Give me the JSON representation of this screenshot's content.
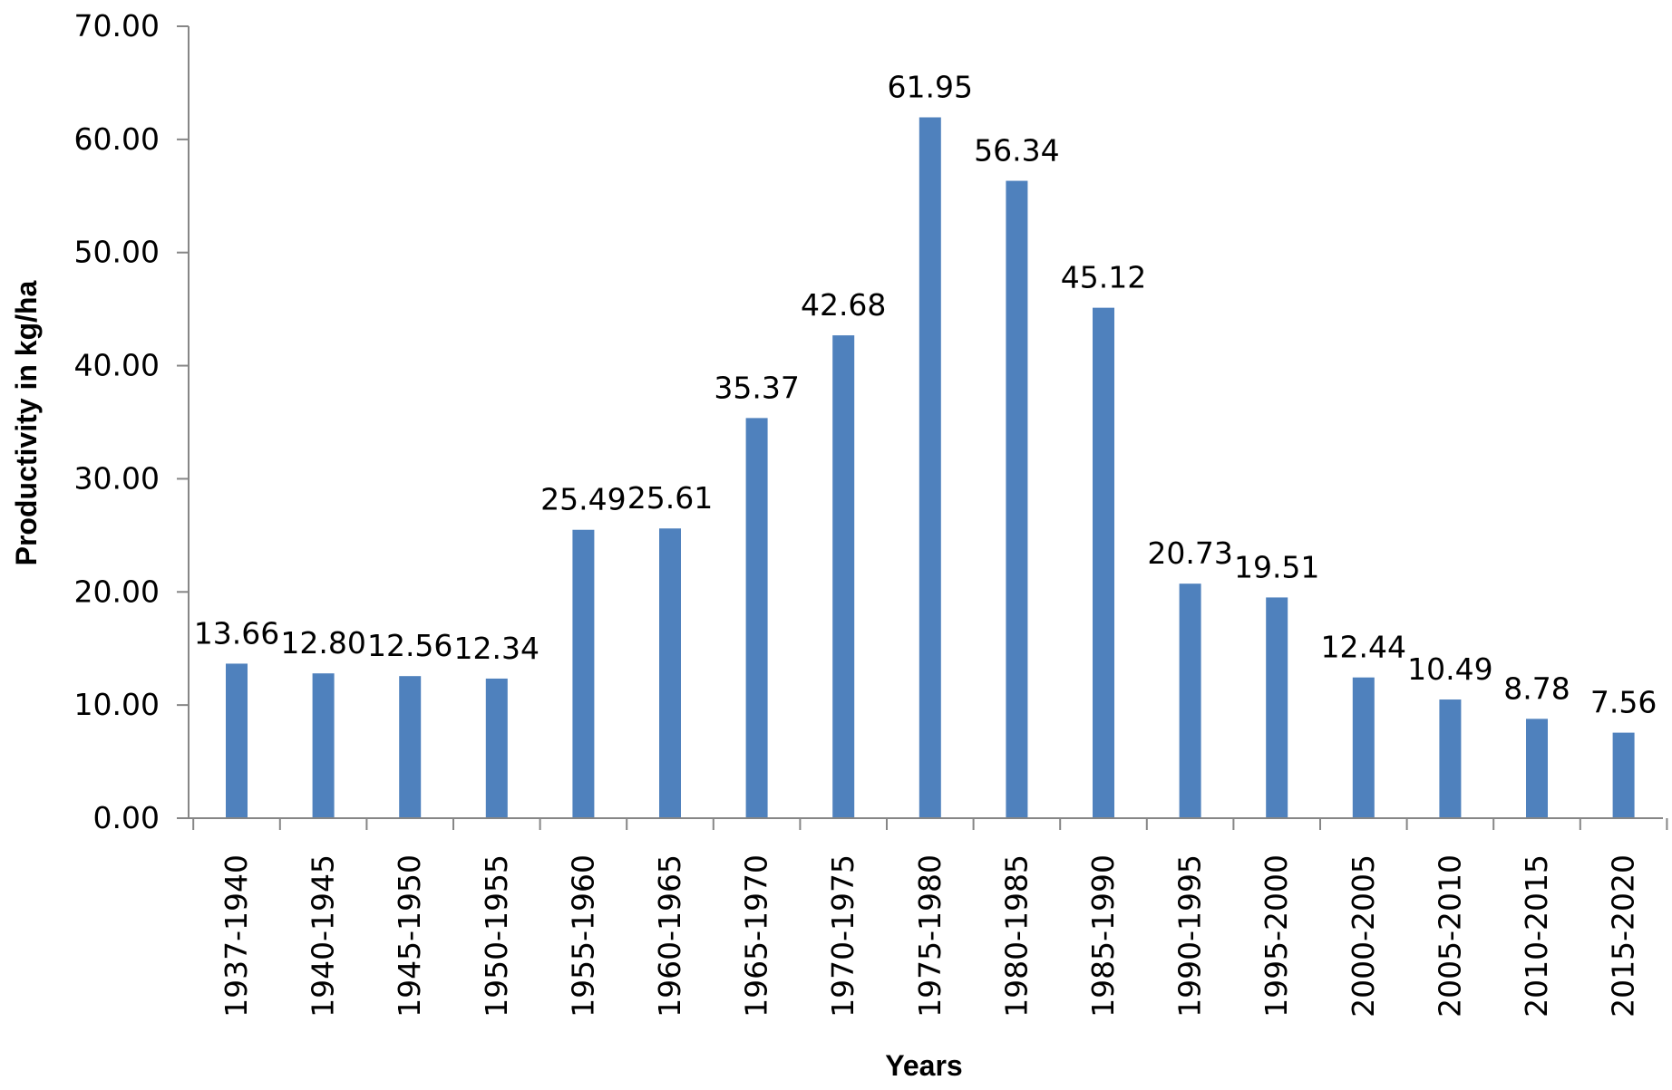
{
  "chart_data": {
    "type": "bar",
    "title": "",
    "xlabel": "Years",
    "ylabel": "Productivity in kg/ha",
    "ylim": [
      0,
      70
    ],
    "yticks": [
      "0.00",
      "10.00",
      "20.00",
      "30.00",
      "40.00",
      "50.00",
      "60.00",
      "70.00"
    ],
    "grid": false,
    "legend": "none",
    "bar_color": "#4F81BD",
    "categories": [
      "1937-1940",
      "1940-1945",
      "1945-1950",
      "1950-1955",
      "1955-1960",
      "1960-1965",
      "1965-1970",
      "1970-1975",
      "1975-1980",
      "1980-1985",
      "1985-1990",
      "1990-1995",
      "1995-2000",
      "2000-2005",
      "2005-2010",
      "2010-2015",
      "2015-2020"
    ],
    "values": [
      13.66,
      12.8,
      12.56,
      12.34,
      25.49,
      25.61,
      35.37,
      42.68,
      61.95,
      56.34,
      45.12,
      20.73,
      19.51,
      12.44,
      10.49,
      8.78,
      7.56
    ],
    "data_labels": [
      "13.66",
      "12.80",
      "12.56",
      "12.34",
      "25.49",
      "25.61",
      "35.37",
      "42.68",
      "61.95",
      "56.34",
      "45.12",
      "20.73",
      "19.51",
      "12.44",
      "10.49",
      "8.78",
      "7.56"
    ]
  }
}
